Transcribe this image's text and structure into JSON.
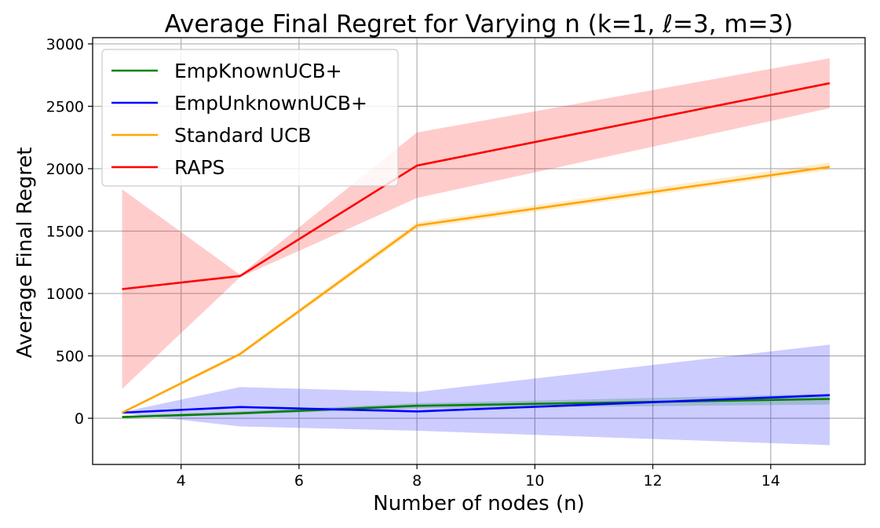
{
  "chart_data": {
    "type": "line",
    "title": "Average Final Regret for Varying n (k=1, ℓ=3, m=3)",
    "xlabel": "Number of nodes (n)",
    "ylabel": "Average Final Regret",
    "xlim": [
      2.5,
      15.6
    ],
    "ylim": [
      -370,
      3050
    ],
    "xticks": [
      4,
      6,
      8,
      10,
      12,
      14
    ],
    "yticks": [
      0,
      500,
      1000,
      1500,
      2000,
      2500,
      3000
    ],
    "grid": true,
    "legend_position": "top-left",
    "x": [
      3,
      5,
      8,
      15
    ],
    "series": [
      {
        "name": "EmpKnownUCB+",
        "color": "#008000",
        "values": [
          10,
          40,
          100,
          155
        ],
        "lower": [
          5,
          30,
          80,
          110
        ],
        "upper": [
          20,
          55,
          120,
          195
        ]
      },
      {
        "name": "EmpUnknownUCB+",
        "color": "#0000ff",
        "values": [
          45,
          90,
          55,
          185
        ],
        "lower": [
          40,
          -65,
          -100,
          -215
        ],
        "upper": [
          50,
          250,
          210,
          590
        ]
      },
      {
        "name": "Standard UCB",
        "color": "#ffa500",
        "values": [
          45,
          515,
          1545,
          2015
        ],
        "lower": [
          40,
          500,
          1520,
          1990
        ],
        "upper": [
          50,
          530,
          1570,
          2050
        ]
      },
      {
        "name": "RAPS",
        "color": "#ff0000",
        "values": [
          1035,
          1140,
          2025,
          2685
        ],
        "lower": [
          235,
          1130,
          1765,
          2485
        ],
        "upper": [
          1835,
          1150,
          2290,
          2885
        ]
      }
    ]
  }
}
